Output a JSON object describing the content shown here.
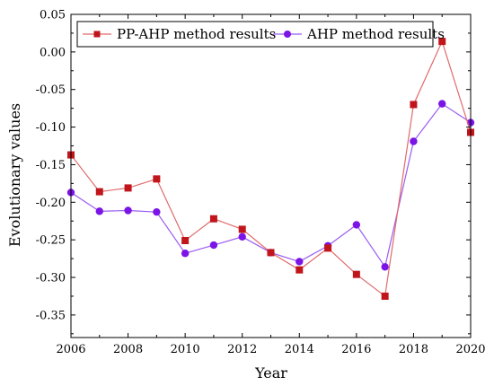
{
  "chart_data": {
    "type": "line",
    "title": "",
    "xlabel": "Year",
    "ylabel": "Evolutionary values",
    "xlim": [
      2006,
      2020
    ],
    "ylim": [
      -0.38,
      0.05
    ],
    "xticks": [
      2006,
      2008,
      2010,
      2012,
      2014,
      2016,
      2018,
      2020
    ],
    "xtick_labels": [
      "2006",
      "2008",
      "2010",
      "2012",
      "2014",
      "2016",
      "2018",
      "2020"
    ],
    "yticks": [
      0.05,
      0.0,
      -0.05,
      -0.1,
      -0.15,
      -0.2,
      -0.25,
      -0.3,
      -0.35
    ],
    "ytick_labels": [
      "0.05",
      "0.00",
      "-0.05",
      "-0.10",
      "-0.15",
      "-0.20",
      "-0.25",
      "-0.30",
      "-0.35"
    ],
    "legend_position": "top",
    "grid": false,
    "x": [
      2006,
      2007,
      2008,
      2009,
      2010,
      2011,
      2012,
      2013,
      2014,
      2015,
      2016,
      2017,
      2018,
      2019,
      2020
    ],
    "series": [
      {
        "name": "PP-AHP method results",
        "color": "#c0151b",
        "line_color": "#e06a6a",
        "marker": "square",
        "values": [
          -0.137,
          -0.186,
          -0.181,
          -0.169,
          -0.251,
          -0.222,
          -0.236,
          -0.267,
          -0.29,
          -0.261,
          -0.296,
          -0.325,
          -0.07,
          0.014,
          -0.107
        ]
      },
      {
        "name": "AHP method results",
        "color": "#7b14e6",
        "line_color": "#9a5cf0",
        "marker": "circle",
        "values": [
          -0.187,
          -0.212,
          -0.211,
          -0.213,
          -0.268,
          -0.257,
          -0.246,
          -0.267,
          -0.279,
          -0.258,
          -0.23,
          -0.286,
          -0.119,
          -0.069,
          -0.094
        ]
      }
    ]
  }
}
